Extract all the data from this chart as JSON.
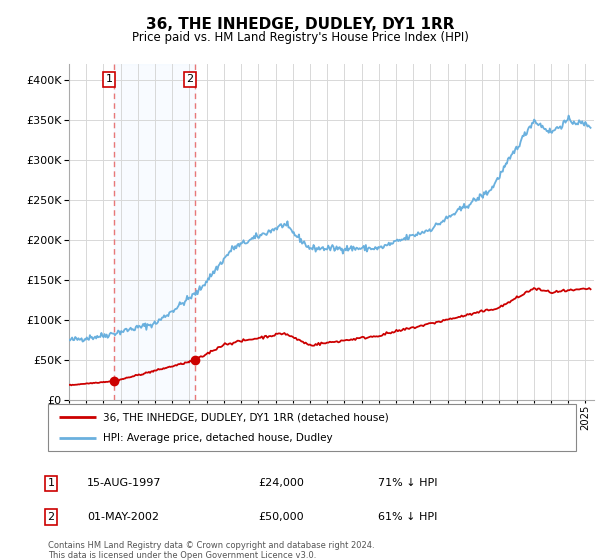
{
  "title": "36, THE INHEDGE, DUDLEY, DY1 1RR",
  "subtitle": "Price paid vs. HM Land Registry's House Price Index (HPI)",
  "legend_line1": "36, THE INHEDGE, DUDLEY, DY1 1RR (detached house)",
  "legend_line2": "HPI: Average price, detached house, Dudley",
  "footnote": "Contains HM Land Registry data © Crown copyright and database right 2024.\nThis data is licensed under the Open Government Licence v3.0.",
  "transaction1_date": "15-AUG-1997",
  "transaction1_price": 24000,
  "transaction1_label": "£24,000",
  "transaction1_hpi": "71% ↓ HPI",
  "transaction2_date": "01-MAY-2002",
  "transaction2_price": 50000,
  "transaction2_label": "£50,000",
  "transaction2_hpi": "61% ↓ HPI",
  "transaction1_x": 1997.62,
  "transaction2_x": 2002.33,
  "hpi_color": "#6ab0de",
  "price_color": "#cc0000",
  "vline_color": "#e87878",
  "shade_color": "#ddeeff",
  "ylim": [
    0,
    420000
  ],
  "xlim_start": 1995.0,
  "xlim_end": 2025.5,
  "background": "#f5f5f5"
}
